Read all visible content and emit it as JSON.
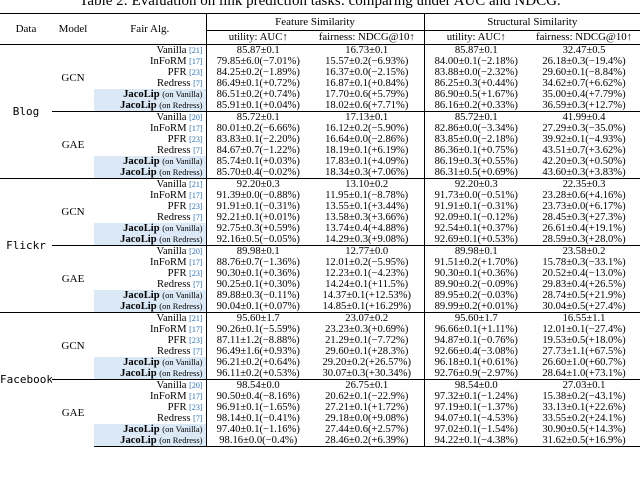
{
  "caption": "Table 2: Evaluation on link prediction tasks: comparing under AUC and NDCG.",
  "headers": {
    "data": "Data",
    "model": "Model",
    "fair_alg": "Fair Alg.",
    "feature": "Feature Similarity",
    "structural": "Structural Similarity",
    "utility": "utility: AUC↑",
    "fairness": "fairness: NDCG@10↑"
  },
  "blocks": [
    {
      "dataset": "Blog",
      "groups": [
        {
          "model": "GCN",
          "rows": [
            {
              "method": "Vanilla",
              "cite": "[21]",
              "sub": "",
              "fu": "85.87±0.1",
              "ff": "16.73±0.1",
              "su": "85.87±0.1",
              "sf": "32.47±0.5"
            },
            {
              "method": "InFoRM",
              "cite": "[17]",
              "sub": "",
              "fu": "79.85±6.0(−7.01%)",
              "ff": "15.57±0.2(−6.93%)",
              "su": "84.00±0.1(−2.18%)",
              "sf": "26.18±0.3(−19.4%)"
            },
            {
              "method": "PFR",
              "cite": "[23]",
              "sub": "",
              "fu": "84.25±0.2(−1.89%)",
              "ff": "16.37±0.0(−2.15%)",
              "su": "83.88±0.0(−2.32%)",
              "sf": "29.60±0.1(−8.84%)"
            },
            {
              "method": "Redress",
              "cite": "[7]",
              "sub": "",
              "fu": "86.49±0.1(+0.72%)",
              "ff": "16.87±0.1(+0.84%)",
              "su": "86.25±0.3(+0.44%)",
              "sf": "34.62±0.7(+6.62%)"
            },
            {
              "method": "JacoLip",
              "cite": "",
              "sub": "(on Vanilla)",
              "fu": "86.51±0.2(+0.74%)",
              "ff": "17.70±0.6(+5.79%)",
              "su": "86.90±0.5(+1.67%)",
              "sf": "35.00±0.4(+7.79%)"
            },
            {
              "method": "JacoLip",
              "cite": "",
              "sub": "(on Redress)",
              "fu": "85.91±0.1(+0.04%)",
              "ff": "18.02±0.6(+7.71%)",
              "su": "86.16±0.2(+0.33%)",
              "sf": "36.59±0.3(+12.7%)"
            }
          ]
        },
        {
          "model": "GAE",
          "rows": [
            {
              "method": "Vanilla",
              "cite": "[20]",
              "sub": "",
              "fu": "85.72±0.1",
              "ff": "17.13±0.1",
              "su": "85.72±0.1",
              "sf": "41.99±0.4"
            },
            {
              "method": "InFoRM",
              "cite": "[17]",
              "sub": "",
              "fu": "80.01±0.2(−6.66%)",
              "ff": "16.12±0.2(−5.90%)",
              "su": "82.86±0.0(−3.34%)",
              "sf": "27.29±0.3(−35.0%)"
            },
            {
              "method": "PFR",
              "cite": "[23]",
              "sub": "",
              "fu": "83.83±0.1(−2.20%)",
              "ff": "16.64±0.0(−2.86%)",
              "su": "83.85±0.0(−2.18%)",
              "sf": "39.92±0.1(−4.93%)"
            },
            {
              "method": "Redress",
              "cite": "[7]",
              "sub": "",
              "fu": "84.67±0.7(−1.22%)",
              "ff": "18.19±0.1(+6.19%)",
              "su": "86.36±0.1(+0.75%)",
              "sf": "43.51±0.7(+3.62%)"
            },
            {
              "method": "JacoLip",
              "cite": "",
              "sub": "(on Vanilla)",
              "fu": "85.74±0.1(+0.03%)",
              "ff": "17.83±0.1(+4.09%)",
              "su": "86.19±0.3(+0.55%)",
              "sf": "42.20±0.3(+0.50%)"
            },
            {
              "method": "JacoLip",
              "cite": "",
              "sub": "(on Redress)",
              "fu": "85.70±0.4(−0.02%)",
              "ff": "18.34±0.3(+7.06%)",
              "su": "86.31±0.5(+0.69%)",
              "sf": "43.60±0.3(+3.83%)"
            }
          ]
        }
      ]
    },
    {
      "dataset": "Flickr",
      "groups": [
        {
          "model": "GCN",
          "rows": [
            {
              "method": "Vanilla",
              "cite": "[21]",
              "sub": "",
              "fu": "92.20±0.3",
              "ff": "13.10±0.2",
              "su": "92.20±0.3",
              "sf": "22.35±0.3"
            },
            {
              "method": "InFoRM",
              "cite": "[17]",
              "sub": "",
              "fu": "91.39±0.0(−0.88%)",
              "ff": "11.95±0.1(−8.78%)",
              "su": "91.73±0.0(−0.51%)",
              "sf": "23.28±0.6(+4.16%)"
            },
            {
              "method": "PFR",
              "cite": "[23]",
              "sub": "",
              "fu": "91.91±0.1(−0.31%)",
              "ff": "13.55±0.1(+3.44%)",
              "su": "91.91±0.1(−0.31%)",
              "sf": "23.73±0.0(+6.17%)"
            },
            {
              "method": "Redress",
              "cite": "[7]",
              "sub": "",
              "fu": "92.21±0.1(+0.01%)",
              "ff": "13.58±0.3(+3.66%)",
              "su": "92.09±0.1(−0.12%)",
              "sf": "28.45±0.3(+27.3%)"
            },
            {
              "method": "JacoLip",
              "cite": "",
              "sub": "(on Vanilla)",
              "fu": "92.75±0.3(+0.59%)",
              "ff": "13.74±0.4(+4.88%)",
              "su": "92.54±0.1(+0.37%)",
              "sf": "26.61±0.4(+19.1%)"
            },
            {
              "method": "JacoLip",
              "cite": "",
              "sub": "(on Redress)",
              "fu": "92.16±0.5(−0.05%)",
              "ff": "14.29±0.3(+9.08%)",
              "su": "92.69±0.1(+0.53%)",
              "sf": "28.59±0.3(+28.0%)"
            }
          ]
        },
        {
          "model": "GAE",
          "rows": [
            {
              "method": "Vanilla",
              "cite": "[20]",
              "sub": "",
              "fu": "89.98±0.1",
              "ff": "12.77±0.0",
              "su": "89.98±0.1",
              "sf": "23.58±0.2"
            },
            {
              "method": "InFoRM",
              "cite": "[17]",
              "sub": "",
              "fu": "88.76±0.7(−1.36%)",
              "ff": "12.01±0.2(−5.95%)",
              "su": "91.51±0.2(+1.70%)",
              "sf": "15.78±0.3(−33.1%)"
            },
            {
              "method": "PFR",
              "cite": "[23]",
              "sub": "",
              "fu": "90.30±0.1(+0.36%)",
              "ff": "12.23±0.1(−4.23%)",
              "su": "90.30±0.1(+0.36%)",
              "sf": "20.52±0.4(−13.0%)"
            },
            {
              "method": "Redress",
              "cite": "[7]",
              "sub": "",
              "fu": "90.25±0.1(+0.30%)",
              "ff": "14.24±0.1(+11.5%)",
              "su": "89.90±0.2(−0.09%)",
              "sf": "29.83±0.4(+26.5%)"
            },
            {
              "method": "JacoLip",
              "cite": "",
              "sub": "(on Vanilla)",
              "fu": "89.88±0.3(−0.11%)",
              "ff": "14.37±0.1(+12.53%)",
              "su": "89.95±0.2(−0.03%)",
              "sf": "28.74±0.5(+21.9%)"
            },
            {
              "method": "JacoLip",
              "cite": "",
              "sub": "(on Redress)",
              "fu": "90.04±0.1(+0.07%)",
              "ff": "14.85±0.1(+16.29%)",
              "su": "89.99±0.2(+0.01%)",
              "sf": "30.04±0.5(+27.4%)"
            }
          ]
        }
      ]
    },
    {
      "dataset": "Facebook",
      "groups": [
        {
          "model": "GCN",
          "rows": [
            {
              "method": "Vanilla",
              "cite": "[21]",
              "sub": "",
              "fu": "95.60±1.7",
              "ff": "23.07±0.2",
              "su": "95.60±1.7",
              "sf": "16.55±1.1"
            },
            {
              "method": "InFoRM",
              "cite": "[17]",
              "sub": "",
              "fu": "90.26±0.1(−5.59%)",
              "ff": "23.23±0.3(+0.69%)",
              "su": "96.66±0.1(+1.11%)",
              "sf": "12.01±0.1(−27.4%)"
            },
            {
              "method": "PFR",
              "cite": "[23]",
              "sub": "",
              "fu": "87.11±1.2(−8.88%)",
              "ff": "21.29±0.1(−7.72%)",
              "su": "94.87±0.1(−0.76%)",
              "sf": "19.53±0.5(+18.0%)"
            },
            {
              "method": "Redress",
              "cite": "[7]",
              "sub": "",
              "fu": "96.49±1.6(+0.93%)",
              "ff": "29.60±0.1(+28.3%)",
              "su": "92.66±0.4(−3.08%)",
              "sf": "27.73±1.1(+67.5%)"
            },
            {
              "method": "JacoLip",
              "cite": "",
              "sub": "(on Vanilla)",
              "fu": "96.21±0.2(+0.64%)",
              "ff": "29.20±0.2(+26.57%)",
              "su": "96.18±0.1(+0.61%)",
              "sf": "26.60±1.0(+60.7%)"
            },
            {
              "method": "JacoLip",
              "cite": "",
              "sub": "(on Redress)",
              "fu": "96.11±0.2(+0.53%)",
              "ff": "30.07±0.3(+30.34%)",
              "su": "92.76±0.9(−2.97%)",
              "sf": "28.64±1.0(+73.1%)"
            }
          ]
        },
        {
          "model": "GAE",
          "rows": [
            {
              "method": "Vanilla",
              "cite": "[20]",
              "sub": "",
              "fu": "98.54±0.0",
              "ff": "26.75±0.1",
              "su": "98.54±0.0",
              "sf": "27.03±0.1"
            },
            {
              "method": "InFoRM",
              "cite": "[17]",
              "sub": "",
              "fu": "90.50±0.4(−8.16%)",
              "ff": "20.62±0.1(−22.9%)",
              "su": "97.32±0.1(−1.24%)",
              "sf": "15.38±0.2(−43.1%)"
            },
            {
              "method": "PFR",
              "cite": "[23]",
              "sub": "",
              "fu": "96.91±0.1(−1.65%)",
              "ff": "27.21±0.1(+1.72%)",
              "su": "97.19±0.1(−1.37%)",
              "sf": "33.13±0.1(+22.6%)"
            },
            {
              "method": "Redress",
              "cite": "[7]",
              "sub": "",
              "fu": "98.14±0.1(−0.41%)",
              "ff": "29.18±0.0(+9.08%)",
              "su": "94.07±0.1(−4.53%)",
              "sf": "33.55±0.2(+24.1%)"
            },
            {
              "method": "JacoLip",
              "cite": "",
              "sub": "(on Vanilla)",
              "fu": "97.40±0.1(−1.16%)",
              "ff": "27.44±0.6(+2.57%)",
              "su": "97.02±0.1(−1.54%)",
              "sf": "30.90±0.5(+14.3%)"
            },
            {
              "method": "JacoLip",
              "cite": "",
              "sub": "(on Redress)",
              "fu": "98.16±0.0(−0.4%)",
              "ff": "28.46±0.2(+6.39%)",
              "su": "94.22±0.1(−4.38%)",
              "sf": "31.62±0.5(+16.9%)"
            }
          ]
        }
      ]
    }
  ]
}
